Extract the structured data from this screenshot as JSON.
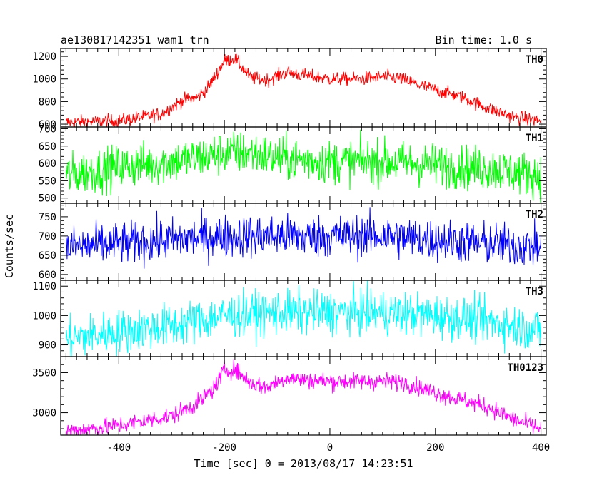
{
  "chart_data": {
    "type": "line",
    "title": "ae130817142351_wam1_trn",
    "subtitle": "Bin time: 1.0 s",
    "xlabel": "Time [sec] 0 = 2013/08/17 14:23:51",
    "ylabel": "Counts/sec",
    "xlim": [
      -510,
      410
    ],
    "xticks": [
      -400,
      -200,
      0,
      200,
      400
    ],
    "bin_time_s": 1.0,
    "grid": false,
    "panels": [
      {
        "name": "TH0",
        "color": "#ff0000",
        "ylim": [
          575,
          1270
        ],
        "yticks": [
          600,
          800,
          1000,
          1200
        ],
        "noise": 30,
        "profile": [
          [
            -500,
            615
          ],
          [
            -400,
            630
          ],
          [
            -320,
            690
          ],
          [
            -280,
            810
          ],
          [
            -250,
            840
          ],
          [
            -230,
            930
          ],
          [
            -200,
            1160
          ],
          [
            -180,
            1180
          ],
          [
            -150,
            1010
          ],
          [
            -120,
            990
          ],
          [
            -80,
            1060
          ],
          [
            -60,
            1040
          ],
          [
            0,
            1000
          ],
          [
            60,
            1000
          ],
          [
            100,
            1020
          ],
          [
            130,
            1010
          ],
          [
            180,
            930
          ],
          [
            250,
            840
          ],
          [
            300,
            740
          ],
          [
            350,
            660
          ],
          [
            400,
            630
          ]
        ]
      },
      {
        "name": "TH1",
        "color": "#00ff00",
        "ylim": [
          485,
          705
        ],
        "yticks": [
          500,
          550,
          600,
          650,
          700
        ],
        "noise": 32,
        "profile": [
          [
            -500,
            565
          ],
          [
            -400,
            590
          ],
          [
            -300,
            605
          ],
          [
            -250,
            615
          ],
          [
            -200,
            630
          ],
          [
            -150,
            630
          ],
          [
            -100,
            615
          ],
          [
            0,
            605
          ],
          [
            100,
            605
          ],
          [
            200,
            595
          ],
          [
            300,
            585
          ],
          [
            400,
            565
          ]
        ]
      },
      {
        "name": "TH2",
        "color": "#0000ff",
        "ylim": [
          585,
          785
        ],
        "yticks": [
          600,
          650,
          700,
          750
        ],
        "noise": 28,
        "profile": [
          [
            -500,
            670
          ],
          [
            -400,
            680
          ],
          [
            -300,
            690
          ],
          [
            -200,
            700
          ],
          [
            -100,
            700
          ],
          [
            0,
            700
          ],
          [
            100,
            700
          ],
          [
            200,
            690
          ],
          [
            300,
            680
          ],
          [
            400,
            672
          ]
        ]
      },
      {
        "name": "TH3",
        "color": "#00ffff",
        "ylim": [
          860,
          1120
        ],
        "yticks": [
          900,
          1000,
          1100
        ],
        "noise": 38,
        "profile": [
          [
            -500,
            920
          ],
          [
            -400,
            945
          ],
          [
            -300,
            965
          ],
          [
            -200,
            1000
          ],
          [
            -100,
            1010
          ],
          [
            0,
            1010
          ],
          [
            100,
            1010
          ],
          [
            200,
            1000
          ],
          [
            300,
            980
          ],
          [
            400,
            950
          ]
        ]
      },
      {
        "name": "TH0123",
        "color": "#ff00ff",
        "ylim": [
          2720,
          3700
        ],
        "yticks": [
          3000,
          3500
        ],
        "noise": 55,
        "profile": [
          [
            -500,
            2770
          ],
          [
            -400,
            2840
          ],
          [
            -300,
            2960
          ],
          [
            -250,
            3120
          ],
          [
            -220,
            3300
          ],
          [
            -200,
            3530
          ],
          [
            -180,
            3540
          ],
          [
            -150,
            3370
          ],
          [
            -120,
            3320
          ],
          [
            -80,
            3440
          ],
          [
            -50,
            3410
          ],
          [
            0,
            3390
          ],
          [
            100,
            3390
          ],
          [
            140,
            3380
          ],
          [
            200,
            3250
          ],
          [
            300,
            3070
          ],
          [
            350,
            2910
          ],
          [
            400,
            2800
          ]
        ]
      }
    ]
  }
}
